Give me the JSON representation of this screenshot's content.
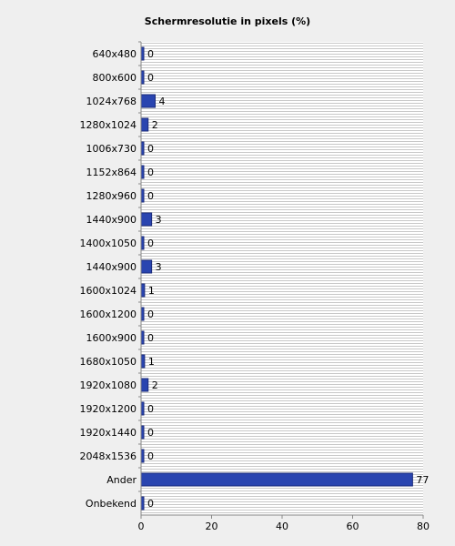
{
  "chart_data": {
    "type": "bar",
    "orientation": "horizontal",
    "title": "Schermresolutie in pixels (%)",
    "xlabel": "",
    "ylabel": "",
    "xlim": [
      0,
      80
    ],
    "x_ticks": [
      0,
      20,
      40,
      60,
      80
    ],
    "grid": "horizontal stripes",
    "colors": {
      "bar": "#2a45b0",
      "bar_edge": "#1a2a7a",
      "plot_bg": "#ffffff",
      "grid_line": "#c8c8c8"
    },
    "categories": [
      "640x480",
      "800x600",
      "1024x768",
      "1280x1024",
      "1006x730",
      "1152x864",
      "1280x960",
      "1440x900",
      "1400x1050",
      "1440x900",
      "1600x1024",
      "1600x1200",
      "1600x900",
      "1680x1050",
      "1920x1080",
      "1920x1200",
      "1920x1440",
      "2048x1536",
      "Ander",
      "Onbekend"
    ],
    "values": [
      0,
      0,
      4,
      2,
      0,
      0,
      0,
      3,
      0,
      3,
      1,
      0,
      0,
      1,
      2,
      0,
      0,
      0,
      77,
      0
    ]
  }
}
